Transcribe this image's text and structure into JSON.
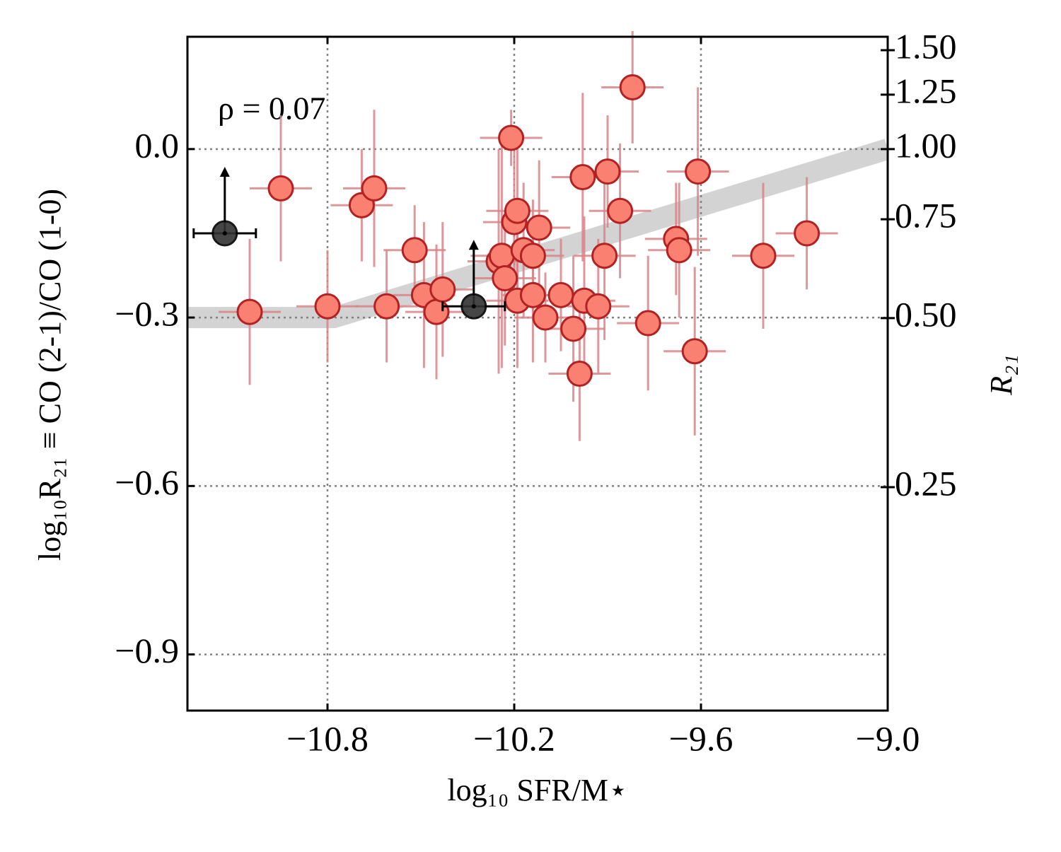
{
  "chart_data": {
    "type": "scatter",
    "xlabel": "log₁₀ SFR/M⋆",
    "ylabel": "log₁₀R₂₁ ≡ CO (2-1)/CO (1-0)",
    "y2label": "R₂₁",
    "annotation": "ρ = 0.07",
    "xlim": [
      -11.25,
      -9.0
    ],
    "ylim": [
      -1.0,
      0.2
    ],
    "y2lim": [
      0.1,
      1.585
    ],
    "y2log": true,
    "grid": true,
    "xticks": [
      {
        "value": -10.8,
        "label": "−10.8"
      },
      {
        "value": -10.2,
        "label": "−10.2"
      },
      {
        "value": -9.6,
        "label": "−9.6"
      },
      {
        "value": -9.0,
        "label": "−9.0"
      }
    ],
    "yticks": [
      {
        "value": 0.0,
        "label": "0.0"
      },
      {
        "value": -0.3,
        "label": "−0.3"
      },
      {
        "value": -0.6,
        "label": "−0.6"
      },
      {
        "value": -0.9,
        "label": "−0.9"
      }
    ],
    "y2ticks": [
      {
        "value": 1.5,
        "label": "1.50"
      },
      {
        "value": 1.25,
        "label": "1.25"
      },
      {
        "value": 1.0,
        "label": "1.00"
      },
      {
        "value": 0.75,
        "label": "0.75"
      },
      {
        "value": 0.5,
        "label": "0.50"
      },
      {
        "value": 0.25,
        "label": "0.25"
      }
    ],
    "series": [
      {
        "type": "band",
        "color": "#d3d3d3",
        "x": [
          -11.25,
          -10.78,
          -9.0
        ],
        "values": [
          -0.3,
          -0.3,
          0.0
        ]
      },
      {
        "type": "points",
        "color": "#fa8072",
        "edgecolor": "#b22222",
        "errcolor": "#d9858a",
        "x": [
          -11.05,
          -10.95,
          -10.8,
          -10.69,
          -10.65,
          -10.61,
          -10.52,
          -10.49,
          -10.45,
          -10.43,
          -10.25,
          -10.24,
          -10.23,
          -10.21,
          -10.2,
          -10.19,
          -10.19,
          -10.17,
          -10.14,
          -10.14,
          -10.12,
          -10.1,
          -10.05,
          -10.01,
          -9.99,
          -9.98,
          -9.975,
          -9.93,
          -9.91,
          -9.9,
          -9.86,
          -9.82,
          -9.77,
          -9.68,
          -9.67,
          -9.62,
          -9.61,
          -9.4,
          -9.26
        ],
        "values": [
          -0.29,
          -0.07,
          -0.28,
          -0.1,
          -0.07,
          -0.28,
          -0.18,
          -0.26,
          -0.29,
          -0.25,
          -0.2,
          -0.19,
          -0.23,
          0.02,
          -0.13,
          -0.11,
          -0.27,
          -0.18,
          -0.26,
          -0.19,
          -0.14,
          -0.3,
          -0.26,
          -0.32,
          -0.4,
          -0.05,
          -0.27,
          -0.28,
          -0.19,
          -0.04,
          -0.11,
          0.11,
          -0.31,
          -0.16,
          -0.18,
          -0.36,
          -0.04,
          -0.19,
          -0.15
        ],
        "xerr": [
          0.1,
          0.1,
          0.1,
          0.1,
          0.1,
          0.1,
          0.1,
          0.1,
          0.1,
          0.1,
          0.1,
          0.1,
          0.1,
          0.1,
          0.1,
          0.1,
          0.1,
          0.1,
          0.1,
          0.1,
          0.1,
          0.1,
          0.1,
          0.1,
          0.1,
          0.1,
          0.1,
          0.1,
          0.1,
          0.1,
          0.1,
          0.1,
          0.1,
          0.1,
          0.1,
          0.1,
          0.1,
          0.1,
          0.1
        ],
        "yerr": [
          0.13,
          0.13,
          0.1,
          0.1,
          0.14,
          0.1,
          0.08,
          0.13,
          0.12,
          0.12,
          0.2,
          0.2,
          0.12,
          0.05,
          0.13,
          0.15,
          0.12,
          0.12,
          0.12,
          0.1,
          0.12,
          0.08,
          0.1,
          0.13,
          0.12,
          0.15,
          0.15,
          0.12,
          0.15,
          0.1,
          0.12,
          0.1,
          0.12,
          0.1,
          0.12,
          0.15,
          0.15,
          0.13,
          0.1
        ]
      },
      {
        "type": "points",
        "color": "#333333",
        "edgecolor": "#000000",
        "errcolor": "#000000",
        "lower_limit": true,
        "x": [
          -11.13,
          -10.33
        ],
        "values": [
          -0.15,
          -0.28
        ],
        "xerr": [
          0.1,
          0.1
        ]
      }
    ]
  }
}
